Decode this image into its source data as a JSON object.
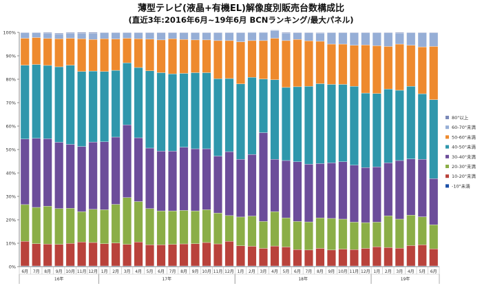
{
  "title_line1": "薄型テレビ(液晶+有機EL)解像度別販売台数構成比",
  "title_line2": "(直近3年:2016年6月~19年6月 BCNランキング/最大パネル)",
  "chart_data": {
    "type": "bar",
    "stacked": true,
    "orientation": "vertical",
    "ylim": [
      0,
      100
    ],
    "yticks": [
      "0%",
      "10%",
      "20%",
      "30%",
      "40%",
      "50%",
      "60%",
      "70%",
      "80%",
      "90%",
      "100%"
    ],
    "grid": false,
    "legend_position": "right",
    "year_labels": [
      {
        "label": "16年",
        "start": 0,
        "end": 6
      },
      {
        "label": "17年",
        "start": 7,
        "end": 18
      },
      {
        "label": "18年",
        "start": 19,
        "end": 30
      },
      {
        "label": "19年",
        "start": 31,
        "end": 36
      }
    ],
    "categories": [
      "6月",
      "7月",
      "8月",
      "9月",
      "10月",
      "11月",
      "12月",
      "1月",
      "2月",
      "3月",
      "4月",
      "5月",
      "6月",
      "7月",
      "8月",
      "9月",
      "10月",
      "11月",
      "12月",
      "1月",
      "2月",
      "3月",
      "4月",
      "5月",
      "6月",
      "7月",
      "8月",
      "9月",
      "10月",
      "11月",
      "12月",
      "1月",
      "2月",
      "3月",
      "4月",
      "5月",
      "6月"
    ],
    "series": [
      {
        "name": "-10\"未満",
        "color": "#1c50a8",
        "values": [
          0.3,
          0.3,
          0.3,
          0.3,
          0.3,
          0.3,
          0.3,
          0.3,
          0.3,
          0.3,
          0.3,
          0.3,
          0.3,
          0.3,
          0.3,
          0.3,
          0.3,
          0.3,
          0.3,
          0.3,
          0.3,
          0.3,
          0.3,
          0.3,
          0.3,
          0.3,
          0.3,
          0.3,
          0.3,
          0.3,
          0.3,
          0.3,
          0.3,
          0.3,
          0.3,
          0.3,
          0.3
        ]
      },
      {
        "name": "10-20\"未満",
        "color": "#b9423b",
        "values": [
          10.5,
          9.5,
          9.3,
          9.2,
          9.6,
          10.2,
          10.0,
          9.5,
          9.8,
          9.2,
          10.2,
          9.0,
          9.0,
          9.2,
          9.4,
          9.5,
          10.0,
          9.4,
          10.5,
          8.6,
          8.4,
          7.5,
          8.5,
          8.1,
          7.0,
          6.8,
          7.5,
          6.8,
          7.2,
          7.0,
          7.5,
          8.2,
          7.9,
          7.6,
          8.7,
          9.0,
          7.3
        ]
      },
      {
        "name": "20-30\"未満",
        "color": "#8bae47",
        "values": [
          15.7,
          15.5,
          16.2,
          15.3,
          15.0,
          13.0,
          14.2,
          14.5,
          16.5,
          20.0,
          17.3,
          15.5,
          14.5,
          14.3,
          14.3,
          14.0,
          14.0,
          13.2,
          11.0,
          12.3,
          12.9,
          11.5,
          14.7,
          12.4,
          12.0,
          12.0,
          13.0,
          13.5,
          12.8,
          11.7,
          11.0,
          10.5,
          13.5,
          12.4,
          13.0,
          12.0,
          10.3
        ]
      },
      {
        "name": "30-40\"未満",
        "color": "#6c4d9a",
        "values": [
          28.0,
          29.5,
          28.8,
          28.3,
          27.3,
          27.8,
          28.7,
          29.0,
          28.7,
          31.0,
          27.2,
          25.8,
          25.5,
          25.5,
          27.0,
          26.5,
          26.0,
          24.3,
          27.3,
          24.6,
          26.3,
          37.9,
          22.3,
          24.5,
          25.5,
          24.6,
          23.2,
          23.7,
          24.5,
          24.3,
          23.5,
          23.6,
          22.6,
          25.0,
          24.0,
          24.5,
          19.7
        ]
      },
      {
        "name": "40-50\"未満",
        "color": "#2f97ac",
        "values": [
          31.5,
          31.5,
          31.3,
          32.2,
          33.8,
          32.0,
          30.3,
          30.0,
          28.5,
          26.5,
          30.0,
          33.0,
          33.5,
          33.0,
          31.5,
          32.5,
          32.5,
          33.0,
          31.2,
          32.2,
          32.9,
          22.9,
          34.0,
          31.2,
          32.0,
          33.3,
          34.1,
          33.5,
          33.0,
          33.7,
          31.8,
          31.3,
          31.5,
          30.0,
          31.0,
          28.0,
          33.7
        ]
      },
      {
        "name": "50-60\"未満",
        "color": "#ee8a2e",
        "values": [
          11.5,
          11.5,
          11.5,
          12.0,
          11.5,
          14.0,
          13.5,
          14.0,
          13.4,
          10.5,
          12.3,
          13.5,
          14.0,
          15.0,
          14.5,
          14.0,
          14.0,
          16.3,
          16.2,
          18.0,
          15.7,
          16.4,
          17.7,
          20.0,
          20.2,
          19.4,
          18.1,
          17.2,
          17.2,
          17.5,
          20.5,
          20.4,
          18.2,
          19.7,
          17.5,
          20.0,
          22.7
        ]
      },
      {
        "name": "60-70\"未満",
        "color": "#96aed6",
        "values": [
          2.3,
          2.0,
          2.3,
          2.1,
          2.2,
          2.3,
          2.6,
          2.5,
          2.6,
          2.3,
          2.5,
          2.7,
          3.0,
          2.5,
          2.8,
          3.0,
          3.0,
          3.3,
          3.3,
          3.8,
          3.4,
          3.4,
          3.3,
          3.2,
          2.8,
          3.4,
          3.5,
          4.8,
          4.8,
          5.3,
          5.2,
          5.5,
          5.8,
          4.7,
          5.3,
          6.0,
          5.8
        ]
      },
      {
        "name": "80\"以上",
        "color": "#7b89b8",
        "values": [
          0.2,
          0.2,
          0.3,
          0.3,
          0.3,
          0.4,
          0.4,
          0.2,
          0.2,
          0.2,
          0.2,
          0.2,
          0.2,
          0.2,
          0.2,
          0.2,
          0.2,
          0.2,
          0.2,
          0.2,
          0.2,
          0.2,
          0.2,
          0.3,
          0.2,
          0.2,
          0.2,
          0.2,
          0.2,
          0.2,
          0.2,
          0.2,
          0.2,
          0.3,
          0.2,
          0.2,
          0.2
        ]
      }
    ]
  }
}
